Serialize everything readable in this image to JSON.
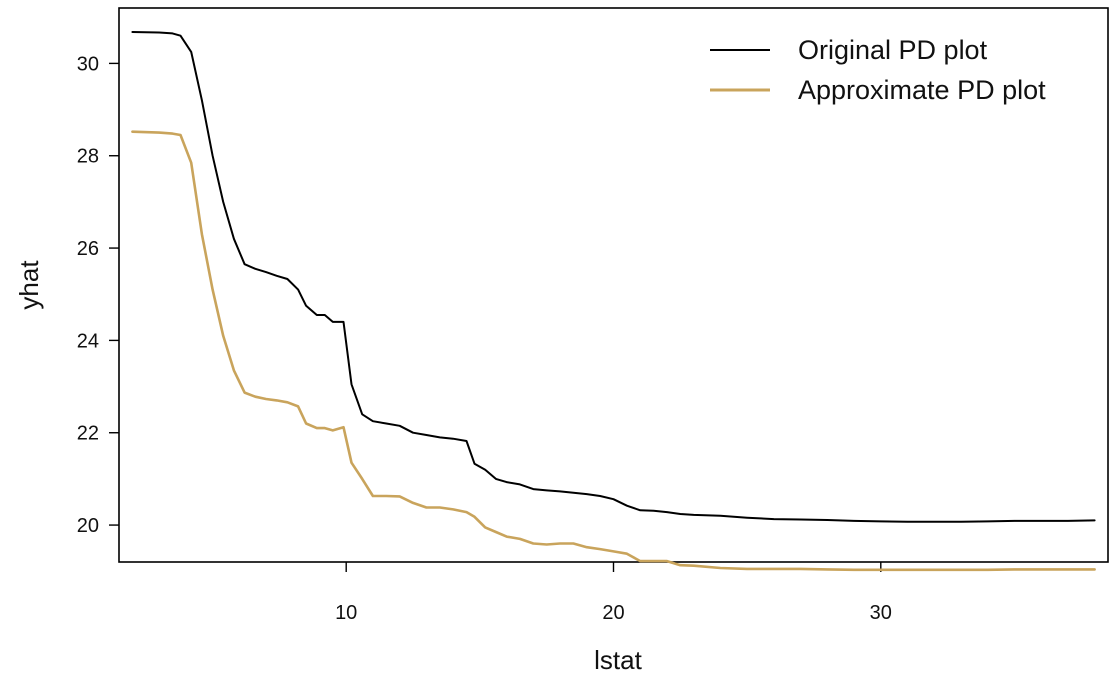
{
  "chart_data": {
    "type": "line",
    "title": "",
    "xlabel": "lstat",
    "ylabel": "yhat",
    "xlim": [
      1.5,
      38.5
    ],
    "ylim": [
      19.2,
      31.2
    ],
    "x_ticks": [
      10,
      20,
      30
    ],
    "y_ticks": [
      20,
      22,
      24,
      26,
      28,
      30
    ],
    "x_tick_labels": [
      "10",
      "20",
      "30"
    ],
    "y_tick_labels": [
      "20",
      "22",
      "24",
      "26",
      "28",
      "30"
    ],
    "grid": false,
    "legend_position": "top-right",
    "series": [
      {
        "name": "Original PD plot",
        "color": "#000000",
        "points": [
          [
            2.0,
            30.68
          ],
          [
            3.0,
            30.67
          ],
          [
            3.5,
            30.65
          ],
          [
            3.8,
            30.6
          ],
          [
            4.2,
            30.25
          ],
          [
            4.6,
            29.2
          ],
          [
            5.0,
            28.0
          ],
          [
            5.4,
            27.0
          ],
          [
            5.8,
            26.2
          ],
          [
            6.2,
            25.65
          ],
          [
            6.6,
            25.55
          ],
          [
            7.0,
            25.48
          ],
          [
            7.4,
            25.4
          ],
          [
            7.8,
            25.33
          ],
          [
            8.2,
            25.1
          ],
          [
            8.5,
            24.75
          ],
          [
            8.9,
            24.55
          ],
          [
            9.2,
            24.55
          ],
          [
            9.5,
            24.4
          ],
          [
            9.9,
            24.4
          ],
          [
            10.2,
            23.05
          ],
          [
            10.6,
            22.4
          ],
          [
            11.0,
            22.25
          ],
          [
            11.5,
            22.2
          ],
          [
            12.0,
            22.15
          ],
          [
            12.5,
            22.0
          ],
          [
            13.0,
            21.95
          ],
          [
            13.5,
            21.9
          ],
          [
            14.0,
            21.87
          ],
          [
            14.5,
            21.82
          ],
          [
            14.8,
            21.33
          ],
          [
            15.2,
            21.2
          ],
          [
            15.6,
            21.0
          ],
          [
            16.0,
            20.93
          ],
          [
            16.5,
            20.88
          ],
          [
            17.0,
            20.78
          ],
          [
            17.5,
            20.75
          ],
          [
            18.0,
            20.73
          ],
          [
            18.5,
            20.7
          ],
          [
            19.0,
            20.67
          ],
          [
            19.5,
            20.63
          ],
          [
            20.0,
            20.56
          ],
          [
            20.5,
            20.42
          ],
          [
            21.0,
            20.32
          ],
          [
            21.5,
            20.31
          ],
          [
            22.0,
            20.28
          ],
          [
            22.5,
            20.24
          ],
          [
            23.0,
            20.22
          ],
          [
            24.0,
            20.2
          ],
          [
            25.0,
            20.16
          ],
          [
            26.0,
            20.13
          ],
          [
            27.0,
            20.12
          ],
          [
            28.0,
            20.11
          ],
          [
            29.0,
            20.09
          ],
          [
            30.0,
            20.08
          ],
          [
            31.0,
            20.07
          ],
          [
            32.0,
            20.07
          ],
          [
            33.0,
            20.07
          ],
          [
            34.0,
            20.08
          ],
          [
            35.0,
            20.09
          ],
          [
            36.0,
            20.09
          ],
          [
            37.0,
            20.09
          ],
          [
            38.0,
            20.1
          ]
        ]
      },
      {
        "name": "Approximate PD plot",
        "color": "#c9a45c",
        "points": [
          [
            2.0,
            28.52
          ],
          [
            3.0,
            28.5
          ],
          [
            3.5,
            28.48
          ],
          [
            3.8,
            28.45
          ],
          [
            4.2,
            27.85
          ],
          [
            4.6,
            26.3
          ],
          [
            5.0,
            25.1
          ],
          [
            5.4,
            24.1
          ],
          [
            5.8,
            23.35
          ],
          [
            6.2,
            22.87
          ],
          [
            6.6,
            22.78
          ],
          [
            7.0,
            22.73
          ],
          [
            7.4,
            22.7
          ],
          [
            7.8,
            22.66
          ],
          [
            8.2,
            22.57
          ],
          [
            8.5,
            22.2
          ],
          [
            8.9,
            22.1
          ],
          [
            9.2,
            22.1
          ],
          [
            9.5,
            22.05
          ],
          [
            9.9,
            22.12
          ],
          [
            10.2,
            21.35
          ],
          [
            10.6,
            21.0
          ],
          [
            11.0,
            20.63
          ],
          [
            11.5,
            20.63
          ],
          [
            12.0,
            20.62
          ],
          [
            12.5,
            20.48
          ],
          [
            13.0,
            20.38
          ],
          [
            13.5,
            20.38
          ],
          [
            14.0,
            20.34
          ],
          [
            14.5,
            20.28
          ],
          [
            14.8,
            20.18
          ],
          [
            15.2,
            19.95
          ],
          [
            15.6,
            19.85
          ],
          [
            16.0,
            19.75
          ],
          [
            16.5,
            19.7
          ],
          [
            17.0,
            19.6
          ],
          [
            17.5,
            19.58
          ],
          [
            18.0,
            19.6
          ],
          [
            18.5,
            19.6
          ],
          [
            19.0,
            19.52
          ],
          [
            19.5,
            19.48
          ],
          [
            20.0,
            19.43
          ],
          [
            20.5,
            19.38
          ],
          [
            21.0,
            19.22
          ],
          [
            21.5,
            19.22
          ],
          [
            22.0,
            19.22
          ],
          [
            22.5,
            19.13
          ],
          [
            23.0,
            19.12
          ],
          [
            24.0,
            19.07
          ],
          [
            25.0,
            19.05
          ],
          [
            26.0,
            19.05
          ],
          [
            27.0,
            19.05
          ],
          [
            28.0,
            19.04
          ],
          [
            29.0,
            19.03
          ],
          [
            30.0,
            19.03
          ],
          [
            31.0,
            19.03
          ],
          [
            32.0,
            19.03
          ],
          [
            33.0,
            19.03
          ],
          [
            34.0,
            19.03
          ],
          [
            35.0,
            19.04
          ],
          [
            36.0,
            19.04
          ],
          [
            37.0,
            19.04
          ],
          [
            38.0,
            19.04
          ]
        ]
      }
    ]
  }
}
